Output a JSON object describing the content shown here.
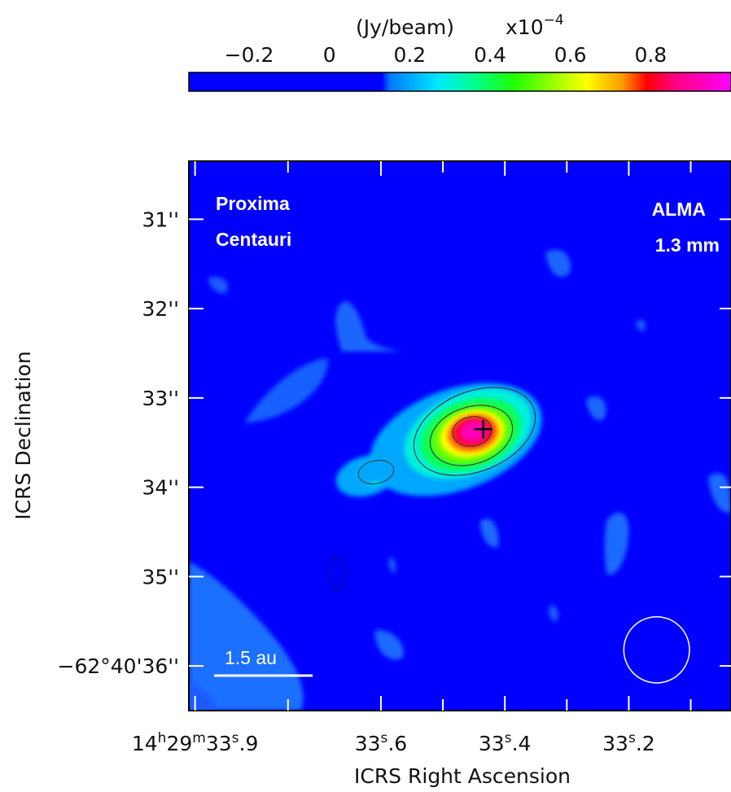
{
  "chart_data": {
    "type": "heatmap",
    "target": {
      "line1": "Proxima",
      "line2": "Centauri"
    },
    "instrument": {
      "line1": "ALMA",
      "line2": "1.3 mm"
    },
    "colorbar": {
      "unit_label": "(Jy/beam)",
      "scale_base": "x10",
      "scale_exponent": "−4",
      "tick_labels": [
        "−0.2",
        "0",
        "0.2",
        "0.4",
        "0.6",
        "0.8"
      ],
      "tick_values": [
        -0.2,
        0,
        0.2,
        0.4,
        0.6,
        0.8
      ],
      "range": [
        -0.35,
        1.0
      ],
      "colormap": [
        {
          "v": -0.35,
          "c": "#0000ff"
        },
        {
          "v": 0.13,
          "c": "#0000ff"
        },
        {
          "v": 0.15,
          "c": "#0078ff"
        },
        {
          "v": 0.27,
          "c": "#00e8ff"
        },
        {
          "v": 0.36,
          "c": "#00ff90"
        },
        {
          "v": 0.46,
          "c": "#20ff00"
        },
        {
          "v": 0.64,
          "c": "#ffff00"
        },
        {
          "v": 0.73,
          "c": "#ff9900"
        },
        {
          "v": 0.79,
          "c": "#ff0000"
        },
        {
          "v": 0.86,
          "c": "#ff0080"
        },
        {
          "v": 1.0,
          "c": "#ff00ff"
        }
      ]
    },
    "xlabel": "ICRS Right Ascension",
    "ylabel": "ICRS Declination",
    "x_ticks": [
      {
        "value_s": 33.9,
        "parts": [
          "14",
          "h",
          "29",
          "m",
          "33",
          "s",
          ".9"
        ]
      },
      {
        "value_s": 33.6,
        "parts": [
          "",
          "",
          "",
          "",
          "33",
          "s",
          ".6"
        ]
      },
      {
        "value_s": 33.4,
        "parts": [
          "",
          "",
          "",
          "",
          "33",
          "s",
          ".4"
        ]
      },
      {
        "value_s": 33.2,
        "parts": [
          "",
          "",
          "",
          "",
          "33",
          "s",
          ".2"
        ]
      }
    ],
    "y_ticks": [
      {
        "value_arcsec": 31,
        "label": "31''"
      },
      {
        "value_arcsec": 32,
        "label": "32''"
      },
      {
        "value_arcsec": 33,
        "label": "33''"
      },
      {
        "value_arcsec": 34,
        "label": "34''"
      },
      {
        "value_arcsec": 35,
        "label": "35''"
      },
      {
        "value_arcsec": 36,
        "label": "−62°40'36''"
      }
    ],
    "x_range_s": [
      33.91,
      33.035
    ],
    "y_range_arcsec": [
      30.35,
      36.5
    ],
    "background_value": -0.1,
    "emission_peak": {
      "ra_s": 33.43,
      "dec_arcsec": 33.35,
      "peak_value": 1.0
    },
    "star_position_marker": {
      "ra_s": 33.435,
      "dec_arcsec": 33.35
    },
    "contour_levels": [
      0.3,
      0.6,
      0.9
    ],
    "scale_bar": {
      "label": "1.5 au"
    },
    "beam": {
      "ra_s": 33.155,
      "dec_arcsec": 35.82,
      "major_arcsec": 0.74,
      "minor_arcsec": 0.7
    },
    "colors": {
      "background": "#0000ff",
      "text": "#111111",
      "overlay_text": "#ffffff"
    }
  }
}
